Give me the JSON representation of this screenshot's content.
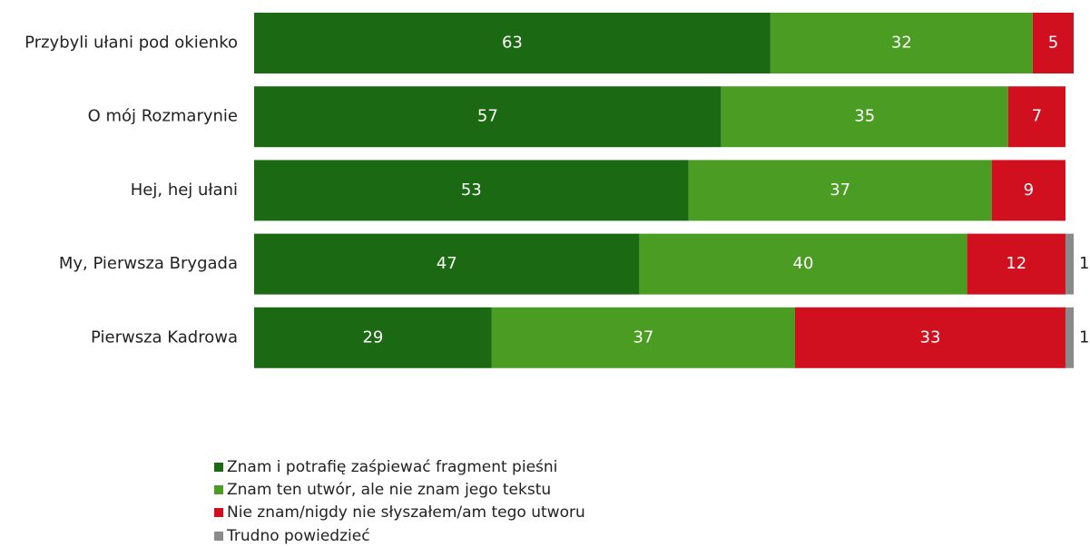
{
  "chart_data": {
    "type": "stacked-bar-horizontal",
    "categories": [
      "Przybyli ułani pod okienko",
      "O mój Rozmarynie",
      "Hej, hej ułani",
      "My, Pierwsza Brygada",
      "Pierwsza Kadrowa"
    ],
    "series": [
      {
        "name": "Znam i potrafię zaśpiewać fragment pieśni",
        "color": "#1b6a13",
        "values": [
          63,
          57,
          53,
          47,
          29
        ]
      },
      {
        "name": "Znam ten utwór, ale nie znam jego tekstu",
        "color": "#4a9d22",
        "values": [
          32,
          35,
          37,
          40,
          37
        ]
      },
      {
        "name": "Nie znam/nigdy nie słyszałem/am tego utworu",
        "color": "#d0101e",
        "values": [
          5,
          7,
          9,
          12,
          33
        ]
      },
      {
        "name": "Trudno powiedzieć",
        "color": "#8a8a8a",
        "values": [
          null,
          null,
          null,
          1,
          1
        ]
      }
    ],
    "xlim": [
      0,
      100
    ],
    "legend": "bottom-left"
  }
}
